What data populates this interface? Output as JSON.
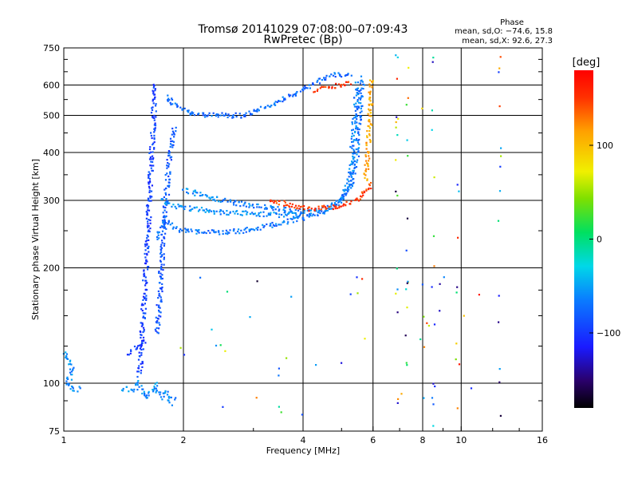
{
  "header": {
    "title": "Tromsø 20141029 07:08:00–07:09:43",
    "subtitle": "RwPretec (Bp)",
    "phase_title": "Phase",
    "phase_o": "mean, sd,O: −74.6, 15.8",
    "phase_x": "mean, sd,X:  92.6, 27.3"
  },
  "colorbar": {
    "unit": "[deg]",
    "ticks": [
      {
        "label": "100",
        "value": 100
      },
      {
        "label": "0",
        "value": 0
      },
      {
        "label": "−100",
        "value": -100
      }
    ],
    "range": [
      -180,
      180
    ]
  },
  "chart_data": {
    "type": "scatter",
    "xlabel": "Frequency [MHz]",
    "ylabel": "Stationary phase Virtual Height [km]",
    "xscale": "log",
    "yscale": "log",
    "xlim": [
      1,
      16
    ],
    "ylim": [
      75,
      750
    ],
    "x_ticks": [
      {
        "label": "1",
        "value": 1
      },
      {
        "label": "2",
        "value": 2
      },
      {
        "label": "4",
        "value": 4
      },
      {
        "label": "6",
        "value": 6
      },
      {
        "label": "8",
        "value": 8
      },
      {
        "label": "10",
        "value": 10
      },
      {
        "label": "16",
        "value": 16
      }
    ],
    "y_ticks": [
      {
        "label": "75",
        "value": 75
      },
      {
        "label": "100",
        "value": 100
      },
      {
        "label": "200",
        "value": 200
      },
      {
        "label": "300",
        "value": 300
      },
      {
        "label": "400",
        "value": 400
      },
      {
        "label": "500",
        "value": 500
      },
      {
        "label": "600",
        "value": 600
      },
      {
        "label": "750",
        "value": 750
      }
    ],
    "grid": true,
    "traces": [
      {
        "color_phase": -95,
        "points": [
          [
            1.55,
            105
          ],
          [
            1.58,
            140
          ],
          [
            1.6,
            180
          ],
          [
            1.62,
            220
          ],
          [
            1.63,
            260
          ],
          [
            1.64,
            300
          ],
          [
            1.65,
            340
          ],
          [
            1.66,
            380
          ],
          [
            1.67,
            430
          ],
          [
            1.68,
            480
          ],
          [
            1.69,
            550
          ],
          [
            1.7,
            610
          ]
        ]
      },
      {
        "color_phase": -85,
        "points": [
          [
            1.72,
            135
          ],
          [
            1.74,
            165
          ],
          [
            1.76,
            200
          ],
          [
            1.78,
            240
          ],
          [
            1.8,
            280
          ],
          [
            1.82,
            330
          ],
          [
            1.84,
            380
          ],
          [
            1.87,
            430
          ],
          [
            1.9,
            470
          ]
        ]
      },
      {
        "color_phase": -70,
        "points": [
          [
            1.72,
            240
          ],
          [
            1.8,
            270
          ],
          [
            1.9,
            255
          ],
          [
            2.0,
            250
          ],
          [
            2.2,
            248
          ],
          [
            2.5,
            247
          ],
          [
            2.8,
            250
          ],
          [
            3.1,
            255
          ],
          [
            3.5,
            262
          ],
          [
            4.0,
            270
          ],
          [
            4.5,
            280
          ],
          [
            5.0,
            300
          ],
          [
            5.3,
            330
          ],
          [
            5.45,
            380
          ],
          [
            5.5,
            450
          ],
          [
            5.55,
            520
          ],
          [
            5.6,
            580
          ],
          [
            5.65,
            630
          ]
        ]
      },
      {
        "color_phase": -60,
        "points": [
          [
            1.75,
            300
          ],
          [
            1.9,
            290
          ],
          [
            2.1,
            285
          ],
          [
            2.4,
            280
          ],
          [
            2.8,
            278
          ],
          [
            3.2,
            276
          ],
          [
            3.6,
            275
          ],
          [
            4.0,
            275
          ]
        ]
      },
      {
        "color_phase": -75,
        "points": [
          [
            1.8,
            560
          ],
          [
            1.95,
            525
          ],
          [
            2.1,
            505
          ],
          [
            2.4,
            500
          ],
          [
            2.8,
            500
          ],
          [
            3.0,
            510
          ],
          [
            3.3,
            530
          ],
          [
            3.7,
            560
          ],
          [
            4.2,
            600
          ],
          [
            4.6,
            635
          ],
          [
            5.0,
            640
          ],
          [
            5.3,
            640
          ]
        ]
      },
      {
        "color_phase": -65,
        "points": [
          [
            2.0,
            320
          ],
          [
            2.5,
            300
          ],
          [
            3.0,
            290
          ],
          [
            3.5,
            285
          ],
          [
            4.0,
            280
          ],
          [
            4.6,
            285
          ],
          [
            5.0,
            300
          ],
          [
            5.2,
            330
          ],
          [
            5.3,
            380
          ],
          [
            5.35,
            440
          ],
          [
            5.4,
            500
          ],
          [
            5.45,
            560
          ],
          [
            5.5,
            610
          ]
        ]
      },
      {
        "color_phase": 150,
        "points": [
          [
            3.3,
            300
          ],
          [
            3.8,
            290
          ],
          [
            4.2,
            285
          ],
          [
            4.6,
            287
          ],
          [
            5.0,
            290
          ],
          [
            5.4,
            300
          ],
          [
            5.7,
            315
          ],
          [
            5.95,
            335
          ]
        ]
      },
      {
        "color_phase": 110,
        "points": [
          [
            5.75,
            340
          ],
          [
            5.8,
            380
          ],
          [
            5.85,
            430
          ],
          [
            5.88,
            480
          ],
          [
            5.9,
            530
          ],
          [
            5.92,
            580
          ],
          [
            5.94,
            620
          ]
        ]
      },
      {
        "color_phase": 150,
        "points": [
          [
            4.3,
            580
          ],
          [
            4.6,
            590
          ],
          [
            5.0,
            600
          ],
          [
            5.3,
            610
          ]
        ]
      },
      {
        "color_phase": -60,
        "points": [
          [
            1.0,
            120
          ],
          [
            1.02,
            115
          ],
          [
            1.05,
            110
          ],
          [
            1.02,
            98
          ],
          [
            1.06,
            96
          ],
          [
            1.1,
            97
          ]
        ]
      },
      {
        "color_phase": -60,
        "points": [
          [
            1.4,
            97
          ],
          [
            1.5,
            96
          ],
          [
            1.55,
            100
          ],
          [
            1.6,
            92
          ],
          [
            1.65,
            95
          ],
          [
            1.7,
            99
          ],
          [
            1.75,
            92
          ],
          [
            1.8,
            95
          ],
          [
            1.85,
            90
          ],
          [
            1.9,
            92
          ]
        ]
      },
      {
        "color_phase": -100,
        "points": [
          [
            1.45,
            120
          ],
          [
            1.5,
            122
          ],
          [
            1.55,
            125
          ],
          [
            1.6,
            130
          ]
        ]
      }
    ],
    "scatter_columns": [
      {
        "x": 6.9,
        "count": 16
      },
      {
        "x": 7.3,
        "count": 14
      },
      {
        "x": 8.5,
        "count": 14
      },
      {
        "x": 9.8,
        "count": 8
      },
      {
        "x": 12.5,
        "count": 14
      },
      {
        "x": 8.0,
        "count": 5
      }
    ]
  }
}
